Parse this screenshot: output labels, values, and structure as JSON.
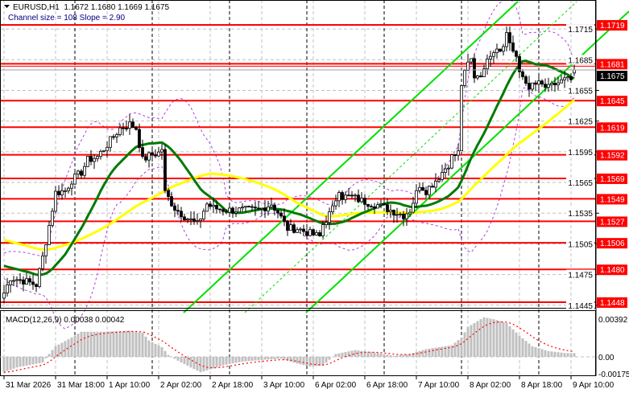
{
  "header": {
    "symbol_line": "EURUSD,H1  1.1672 1.1680 1.1669 1.1675",
    "channel_line": "Channel size = 108 Slope = 2.90",
    "menu_icon": "triangle-down-icon"
  },
  "macd_label": "MACD(12,26,9) 0.00038 0.00042",
  "colors": {
    "level_line": "#ff0000",
    "channel": "#00e000",
    "ma_fast": "#007a00",
    "ma_slow": "#ffff00",
    "bands": "#b040e0",
    "histogram": "#c0c0c0",
    "signal": "#ff0000",
    "current_price_bg": "#000000"
  },
  "chart_data": [
    {
      "type": "candlestick",
      "symbol": "EURUSD",
      "timeframe": "H1",
      "ohlc_last": {
        "open": 1.1672,
        "high": 1.168,
        "low": 1.1669,
        "close": 1.1675
      },
      "current_price": "1.1675",
      "ylim": [
        1.144,
        1.1735
      ],
      "y_ticks": [
        "1.1715",
        "1.1685",
        "1.1655",
        "1.1625",
        "1.1595",
        "1.1565",
        "1.1535",
        "1.1505",
        "1.1475",
        "1.1445"
      ],
      "x_ticks": [
        "31 Mar 2026",
        "31 Mar 18:00",
        "1 Apr 10:00",
        "2 Apr 02:00",
        "2 Apr 18:00",
        "3 Apr 10:00",
        "6 Apr 02:00",
        "6 Apr 18:00",
        "7 Apr 10:00",
        "8 Apr 02:00",
        "8 Apr 18:00",
        "9 Apr 10:00"
      ],
      "levels": [
        "1.1719",
        "1.1681",
        "1.1645",
        "1.1619",
        "1.1592",
        "1.1569",
        "1.1549",
        "1.1527",
        "1.1506",
        "1.1480",
        "1.1448"
      ],
      "channel": {
        "size": 108,
        "slope": 2.9
      },
      "grid": true,
      "close_path": [
        {
          "t": "31 Mar 02:00",
          "p": 1.1457
        },
        {
          "t": "31 Mar 04:00",
          "p": 1.1472
        },
        {
          "t": "31 Mar 08:00",
          "p": 1.1469
        },
        {
          "t": "31 Mar 12:00",
          "p": 1.1465
        },
        {
          "t": "31 Mar 14:00",
          "p": 1.1492
        },
        {
          "t": "31 Mar 16:00",
          "p": 1.1523
        },
        {
          "t": "31 Mar 18:00",
          "p": 1.1555
        },
        {
          "t": "31 Mar 21:00",
          "p": 1.1557
        },
        {
          "t": "31 Mar 23:00",
          "p": 1.1567
        },
        {
          "t": "1 Apr 02:00",
          "p": 1.1575
        },
        {
          "t": "1 Apr 04:00",
          "p": 1.1587
        },
        {
          "t": "1 Apr 07:00",
          "p": 1.159
        },
        {
          "t": "1 Apr 09:00",
          "p": 1.1598
        },
        {
          "t": "1 Apr 12:00",
          "p": 1.161
        },
        {
          "t": "1 Apr 14:00",
          "p": 1.1618
        },
        {
          "t": "1 Apr 17:00",
          "p": 1.1622
        },
        {
          "t": "1 Apr 19:00",
          "p": 1.1618
        },
        {
          "t": "1 Apr 21:00",
          "p": 1.1587
        },
        {
          "t": "1 Apr 23:00",
          "p": 1.1591
        },
        {
          "t": "2 Apr 02:00",
          "p": 1.1594
        },
        {
          "t": "2 Apr 03:00",
          "p": 1.1598
        },
        {
          "t": "2 Apr 04:00",
          "p": 1.1555
        },
        {
          "t": "2 Apr 07:00",
          "p": 1.154
        },
        {
          "t": "2 Apr 10:00",
          "p": 1.1532
        },
        {
          "t": "2 Apr 14:00",
          "p": 1.1524
        },
        {
          "t": "2 Apr 17:00",
          "p": 1.1544
        },
        {
          "t": "2 Apr 19:00",
          "p": 1.154
        },
        {
          "t": "2 Apr 23:00",
          "p": 1.1538
        },
        {
          "t": "3 Apr 03:00",
          "p": 1.1538
        },
        {
          "t": "3 Apr 09:00",
          "p": 1.1538
        },
        {
          "t": "3 Apr 13:00",
          "p": 1.1544
        },
        {
          "t": "3 Apr 15:00",
          "p": 1.1536
        },
        {
          "t": "3 Apr 18:00",
          "p": 1.152
        },
        {
          "t": "3 Apr 21:00",
          "p": 1.152
        },
        {
          "t": "6 Apr 01:00",
          "p": 1.1515
        },
        {
          "t": "6 Apr 04:00",
          "p": 1.1512
        },
        {
          "t": "6 Apr 05:00",
          "p": 1.1524
        },
        {
          "t": "6 Apr 08:00",
          "p": 1.1539
        },
        {
          "t": "6 Apr 10:00",
          "p": 1.1559
        },
        {
          "t": "6 Apr 11:00",
          "p": 1.1551
        },
        {
          "t": "6 Apr 14:00",
          "p": 1.1551
        },
        {
          "t": "6 Apr 17:00",
          "p": 1.1547
        },
        {
          "t": "6 Apr 22:00",
          "p": 1.1543
        },
        {
          "t": "7 Apr 02:00",
          "p": 1.1538
        },
        {
          "t": "7 Apr 06:00",
          "p": 1.1533
        },
        {
          "t": "7 Apr 08:00",
          "p": 1.1538
        },
        {
          "t": "7 Apr 11:00",
          "p": 1.1563
        },
        {
          "t": "7 Apr 13:00",
          "p": 1.1557
        },
        {
          "t": "7 Apr 16:00",
          "p": 1.1567
        },
        {
          "t": "7 Apr 18:00",
          "p": 1.1575
        },
        {
          "t": "7 Apr 20:00",
          "p": 1.1583
        },
        {
          "t": "7 Apr 21:00",
          "p": 1.159
        },
        {
          "t": "7 Apr 23:00",
          "p": 1.1594
        },
        {
          "t": "8 Apr 00:00",
          "p": 1.1661
        },
        {
          "t": "8 Apr 02:00",
          "p": 1.1681
        },
        {
          "t": "8 Apr 03:00",
          "p": 1.1685
        },
        {
          "t": "8 Apr 04:00",
          "p": 1.1669
        },
        {
          "t": "8 Apr 07:00",
          "p": 1.1673
        },
        {
          "t": "8 Apr 08:00",
          "p": 1.1689
        },
        {
          "t": "8 Apr 11:00",
          "p": 1.1697
        },
        {
          "t": "8 Apr 13:00",
          "p": 1.1697
        },
        {
          "t": "8 Apr 14:00",
          "p": 1.1712
        },
        {
          "t": "8 Apr 16:00",
          "p": 1.1693
        },
        {
          "t": "8 Apr 17:00",
          "p": 1.1685
        },
        {
          "t": "8 Apr 18:00",
          "p": 1.1673
        },
        {
          "t": "8 Apr 20:00",
          "p": 1.1665
        },
        {
          "t": "8 Apr 21:00",
          "p": 1.1653
        },
        {
          "t": "8 Apr 22:00",
          "p": 1.1661
        },
        {
          "t": "9 Apr 00:00",
          "p": 1.1661
        },
        {
          "t": "9 Apr 03:00",
          "p": 1.1657
        },
        {
          "t": "9 Apr 05:00",
          "p": 1.1661
        },
        {
          "t": "9 Apr 08:00",
          "p": 1.1665
        },
        {
          "t": "9 Apr 10:00",
          "p": 1.1665
        },
        {
          "t": "9 Apr 11:00",
          "p": 1.1675
        }
      ]
    },
    {
      "type": "bar",
      "title": "MACD(12,26,9)",
      "macd": 0.00038,
      "signal": 0.00042,
      "ylim": [
        -0.00175,
        0.00392
      ],
      "y_ticks": [
        "0.00392",
        "0.00",
        "-0.00175"
      ],
      "histogram_path": [
        {
          "t": "31 Mar 02:00",
          "v": -0.0016
        },
        {
          "t": "31 Mar 06:00",
          "v": -0.0011
        },
        {
          "t": "31 Mar 14:00",
          "v": -0.0006
        },
        {
          "t": "31 Mar 16:00",
          "v": 0.0003
        },
        {
          "t": "31 Mar 18:00",
          "v": 0.0011
        },
        {
          "t": "31 Mar 23:00",
          "v": 0.002
        },
        {
          "t": "1 Apr 02:00",
          "v": 0.0026
        },
        {
          "t": "1 Apr 09:00",
          "v": 0.0026
        },
        {
          "t": "1 Apr 17:00",
          "v": 0.0027
        },
        {
          "t": "1 Apr 21:00",
          "v": 0.0025
        },
        {
          "t": "1 Apr 23:00",
          "v": 0.0017
        },
        {
          "t": "2 Apr 03:00",
          "v": 0.001
        },
        {
          "t": "2 Apr 05:00",
          "v": 0.0002
        },
        {
          "t": "2 Apr 08:00",
          "v": -0.0004
        },
        {
          "t": "2 Apr 12:00",
          "v": -0.0011
        },
        {
          "t": "2 Apr 15:00",
          "v": -0.0016
        },
        {
          "t": "2 Apr 19:00",
          "v": -0.0012
        },
        {
          "t": "2 Apr 23:00",
          "v": -0.0008
        },
        {
          "t": "3 Apr 04:00",
          "v": -0.0005
        },
        {
          "t": "3 Apr 11:00",
          "v": -0.0003
        },
        {
          "t": "3 Apr 16:00",
          "v": -0.0002
        },
        {
          "t": "3 Apr 21:00",
          "v": -0.0007
        },
        {
          "t": "6 Apr 01:00",
          "v": -0.001
        },
        {
          "t": "6 Apr 05:00",
          "v": -0.0009
        },
        {
          "t": "6 Apr 09:00",
          "v": 0.0003
        },
        {
          "t": "6 Apr 15:00",
          "v": 0.0007
        },
        {
          "t": "6 Apr 22:00",
          "v": 0.0004
        },
        {
          "t": "7 Apr 03:00",
          "v": 0.0001
        },
        {
          "t": "7 Apr 08:00",
          "v": 0.0003
        },
        {
          "t": "7 Apr 13:00",
          "v": 0.0008
        },
        {
          "t": "7 Apr 21:00",
          "v": 0.0012
        },
        {
          "t": "8 Apr 00:00",
          "v": 0.002
        },
        {
          "t": "8 Apr 02:00",
          "v": 0.0031
        },
        {
          "t": "8 Apr 07:00",
          "v": 0.0041
        },
        {
          "t": "8 Apr 10:00",
          "v": 0.0039
        },
        {
          "t": "8 Apr 14:00",
          "v": 0.0035
        },
        {
          "t": "8 Apr 18:00",
          "v": 0.0022
        },
        {
          "t": "8 Apr 22:00",
          "v": 0.0011
        },
        {
          "t": "9 Apr 03:00",
          "v": 0.0006
        },
        {
          "t": "9 Apr 08:00",
          "v": 0.0004
        },
        {
          "t": "9 Apr 11:00",
          "v": 0.00038
        }
      ]
    }
  ]
}
